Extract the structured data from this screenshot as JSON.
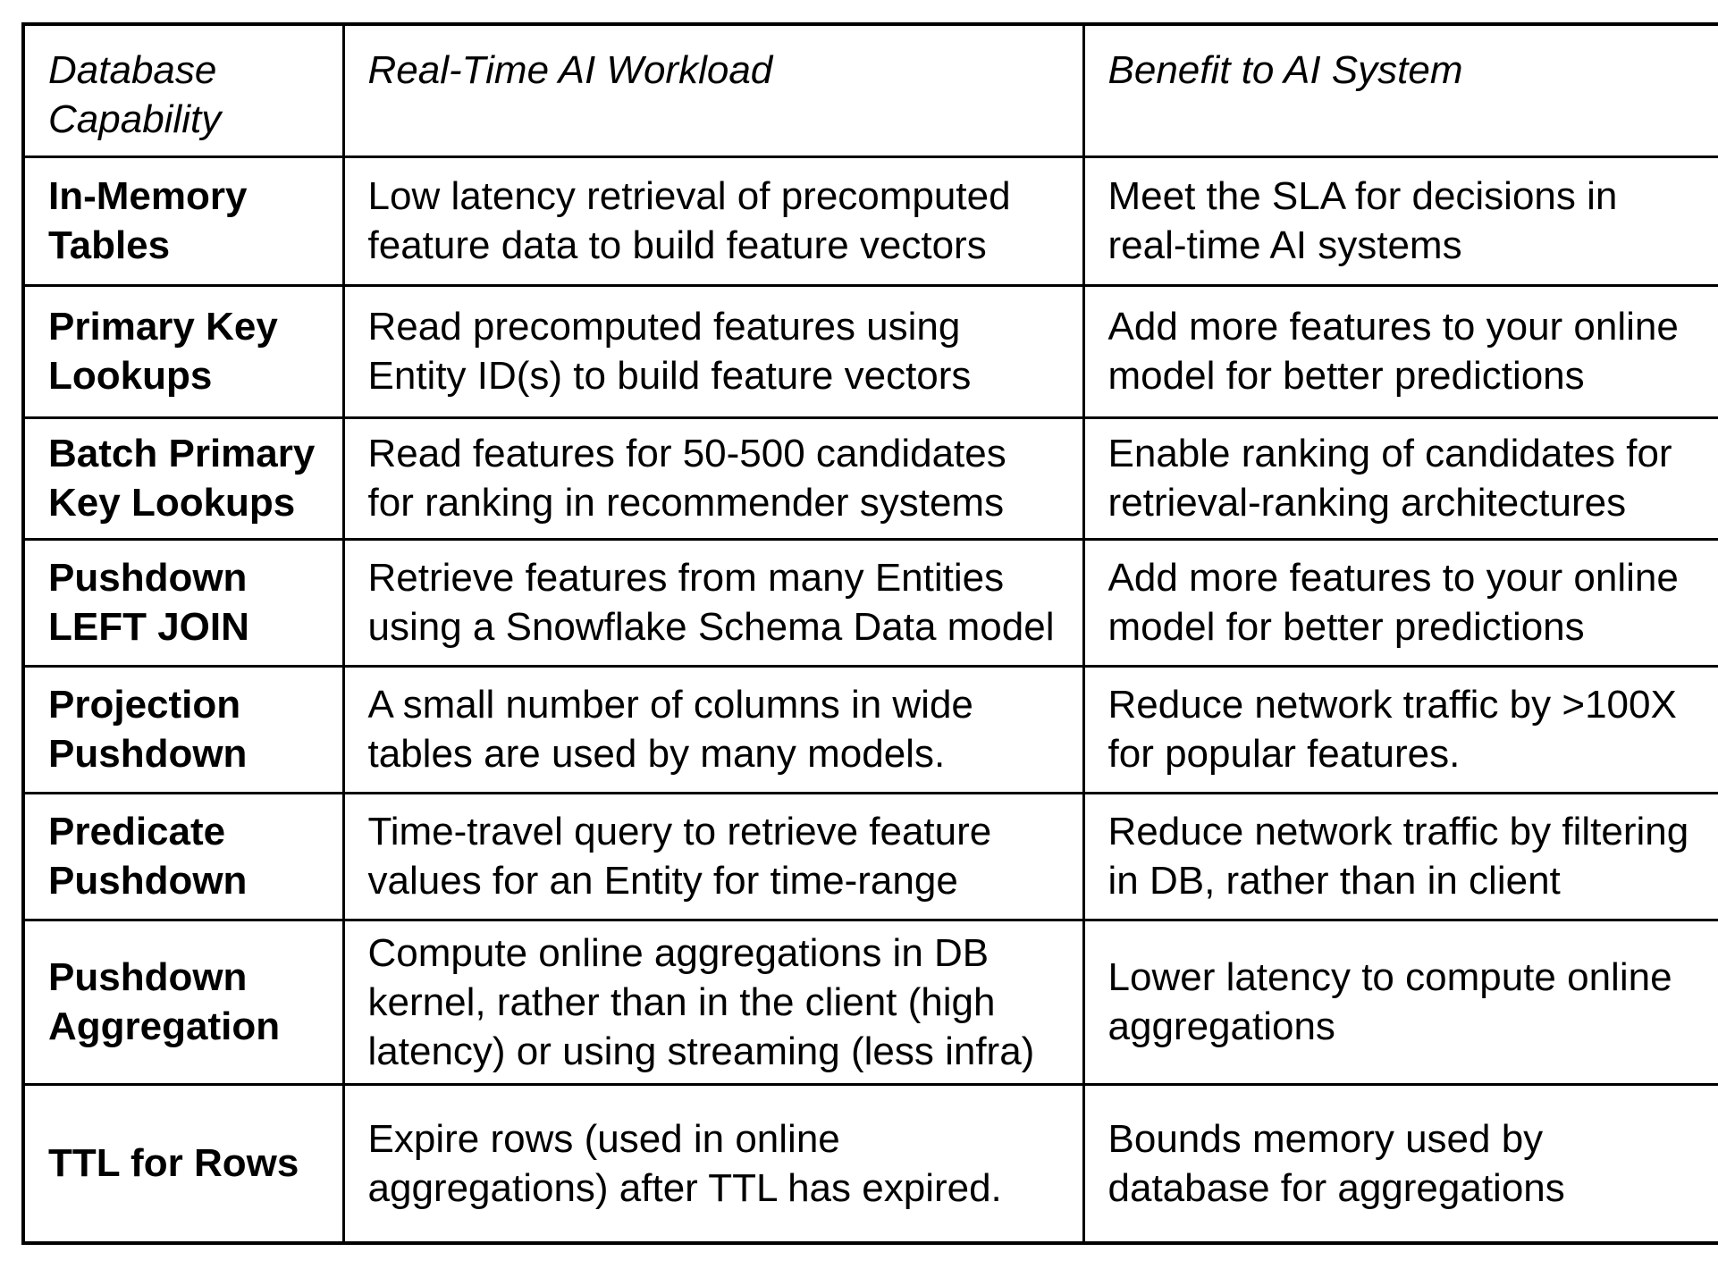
{
  "table": {
    "columns": [
      {
        "label": "Database Capability"
      },
      {
        "label": "Real-Time AI Workload"
      },
      {
        "label": "Benefit to AI System"
      }
    ],
    "rows": [
      {
        "capability": "In-Memory Tables",
        "workload": "Low latency retrieval of precomputed feature data to build feature vectors",
        "benefit": "Meet the SLA for decisions in real-time AI systems"
      },
      {
        "capability": "Primary Key Lookups",
        "workload": "Read precomputed features using Entity ID(s) to build feature vectors",
        "benefit": "Add more features to your online model for better predictions"
      },
      {
        "capability": "Batch Primary Key Lookups",
        "workload": "Read features for 50-500 candidates for ranking in recommender systems",
        "benefit": "Enable ranking of candidates for retrieval-ranking architectures"
      },
      {
        "capability": "Pushdown LEFT JOIN",
        "workload": "Retrieve features from many Entities using a Snowflake Schema Data model",
        "benefit": "Add more features to your online model for better predictions"
      },
      {
        "capability": "Projection Pushdown",
        "workload": "A small number of columns in wide tables are used by many models.",
        "benefit": "Reduce network traffic by >100X for popular features."
      },
      {
        "capability": "Predicate Pushdown",
        "workload": "Time-travel query to retrieve feature values for an Entity for time-range",
        "benefit": "Reduce network traffic by filtering in DB, rather than in client"
      },
      {
        "capability": "Pushdown Aggregation",
        "workload": "Compute online aggregations in DB kernel, rather than in the client (high latency) or using streaming (less infra)",
        "benefit": "Lower latency to compute online aggregations"
      },
      {
        "capability": "TTL for Rows",
        "workload": "Expire rows (used in online aggregations) after TTL has expired.",
        "benefit": "Bounds memory used by database for aggregations"
      }
    ]
  }
}
